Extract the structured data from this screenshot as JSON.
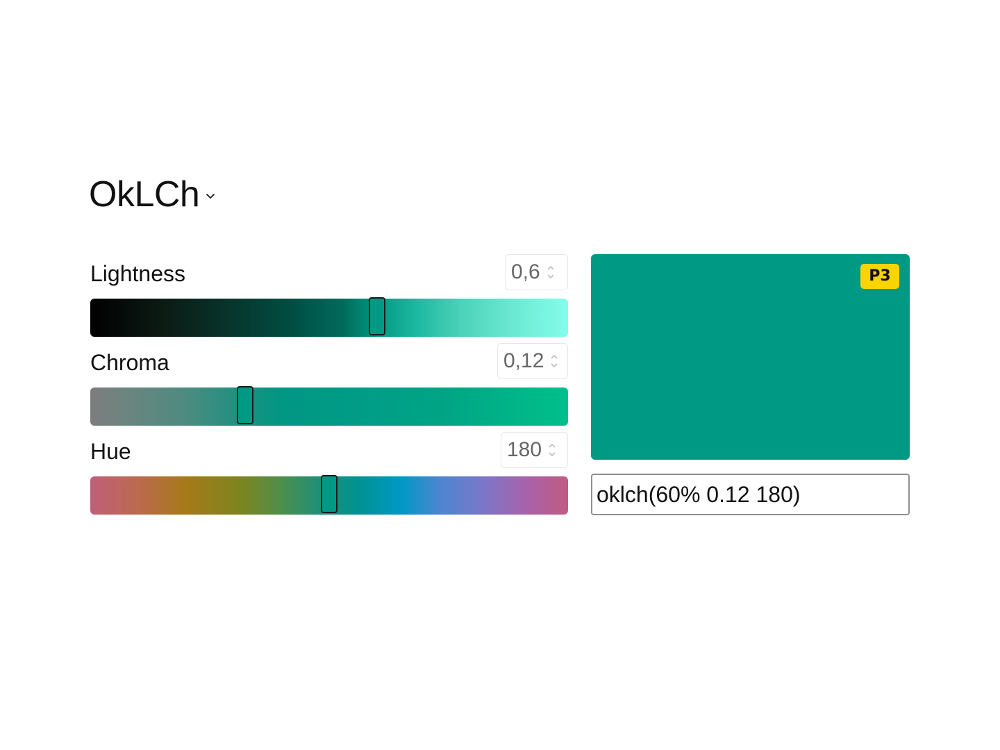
{
  "header": {
    "space_title": "OkLCh",
    "dropdown_icon": "chevron-down-icon"
  },
  "channels": [
    {
      "label": "Lightness",
      "value_text": "0,6",
      "value": 0.6,
      "min": 0,
      "max": 1
    },
    {
      "label": "Chroma",
      "value_text": "0,12",
      "value": 0.12,
      "min": 0,
      "max": 0.37
    },
    {
      "label": "Hue",
      "value_text": "180",
      "value": 180,
      "min": 0,
      "max": 360
    }
  ],
  "preview": {
    "color": "#009983",
    "gamut_badge": "P3",
    "badge_color": "#f8d400"
  },
  "color_input": {
    "value": "oklch(60% 0.12 180)"
  }
}
